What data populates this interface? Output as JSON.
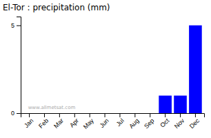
{
  "chart_data": {
    "type": "bar",
    "title": "El-Tor : precipitation (mm)",
    "categories": [
      "Jan",
      "Feb",
      "Mar",
      "Apr",
      "May",
      "Jun",
      "Jul",
      "Aug",
      "Sep",
      "Oct",
      "Nov",
      "Dec"
    ],
    "values": [
      0,
      0,
      0,
      0,
      0,
      0,
      0,
      0,
      0,
      1.0,
      1.0,
      5.0
    ],
    "color": "#0000ff",
    "ylim": [
      0,
      5.5
    ],
    "yticks": [
      0,
      5
    ],
    "grid": false,
    "annotation": "www.allmetsat.com"
  }
}
